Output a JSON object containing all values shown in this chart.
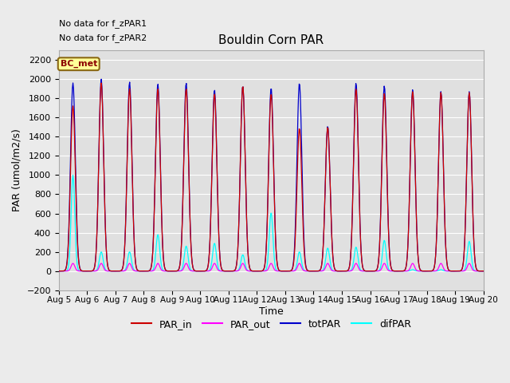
{
  "title": "Bouldin Corn PAR",
  "ylabel": "PAR (umol/m2/s)",
  "xlabel": "Time",
  "ylim": [
    -200,
    2300
  ],
  "yticks": [
    -200,
    0,
    200,
    400,
    600,
    800,
    1000,
    1200,
    1400,
    1600,
    1800,
    2000,
    2200
  ],
  "day_start": 5,
  "colors": {
    "PAR_in": "#cc0000",
    "PAR_out": "#ff00ff",
    "totPAR": "#0000cc",
    "difPAR": "#00ffff"
  },
  "legend_label": "BC_met",
  "legend_label_color": "#8b0000",
  "no_data_texts": [
    "No data for f_zPAR1",
    "No data for f_zPAR2"
  ],
  "background_color": "#ebebeb",
  "axes_bg_color": "#e0e0e0",
  "grid_color": "#ffffff",
  "totPAR_peaks": [
    1960,
    2000,
    1970,
    1950,
    1960,
    1890,
    1930,
    1910,
    1960,
    1510,
    1960,
    1930,
    1890,
    1870,
    1870
  ],
  "PAR_in_peaks": [
    1720,
    1960,
    1900,
    1900,
    1900,
    1850,
    1930,
    1850,
    1490,
    1500,
    1900,
    1850,
    1870,
    1860,
    1860
  ],
  "PAR_out_peaks": [
    80,
    80,
    80,
    80,
    80,
    80,
    80,
    80,
    80,
    80,
    80,
    80,
    80,
    80,
    80
  ],
  "difPAR_peaks": [
    1000,
    200,
    200,
    380,
    260,
    290,
    170,
    610,
    200,
    240,
    250,
    320,
    15,
    15,
    310
  ]
}
